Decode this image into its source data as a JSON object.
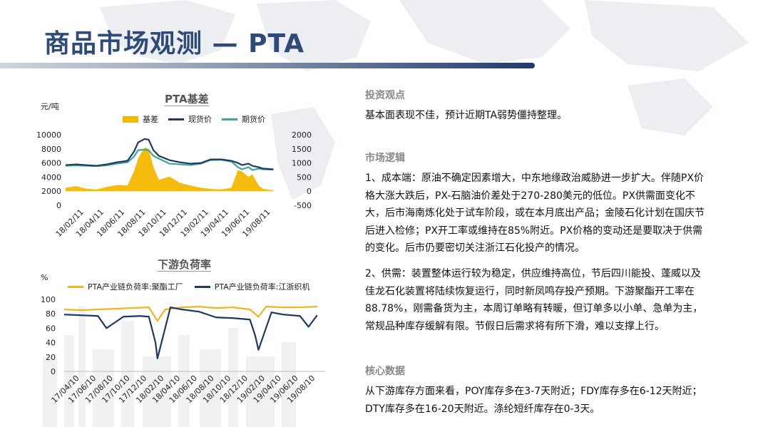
{
  "page": {
    "title": "商品市场观测 — PTA"
  },
  "sections": {
    "view": {
      "title": "投资观点",
      "text": "基本面表现不佳，预计近期TA弱势僵持整理。"
    },
    "logic": {
      "title": "市场逻辑",
      "p1": "1、成本端：原油不确定因素增大，中东地缘政治威胁进一步扩大。伴随PX价格大涨大跌后，PX-石脑油价差处于270-280美元的低位。PX供需面变化不大，后市海南炼化处于试车阶段，或在本月底出产品；金陵石化计划在国庆节后进入检修；PX开工率或维持在85%附近。PX价格的变动还是要取决于供需的变化。后市仍要密切关注浙江石化投产的情况。",
      "p2": "2、供需：装置整体运行较为稳定，供应维持高位，节后四川能投、蓬威以及佳龙石化装置将陆续恢复运行，同时新凤鸣存投产预期。下游聚酯开工率在88.78%，刚需备货为主，本周订单略有转暖，但订单多以小单、急单为主，常规品种库存缓解有限。节假日后需求将有所下滑，难以支撑上行。"
    },
    "core": {
      "title": "核心数据",
      "text": "从下游库存方面来看，POY库存多在3-7天附近；FDY库存多在6-12天附近；DTY库存多在16-20天附近。涤纶短纤库存在0-3天。"
    }
  },
  "colors": {
    "basis": "#f5b800",
    "spot": "#1f3864",
    "futures": "#3aa89a",
    "polyester": "#f2b520",
    "jiangzhe": "#1f3864"
  },
  "chart_data": [
    {
      "type": "bar",
      "title": "PTA基差",
      "ylabel_left": "元/吨",
      "ylim_left": [
        0,
        10000
      ],
      "yticks_left": [
        "10000",
        "8000",
        "6000",
        "4000",
        "2000",
        "0"
      ],
      "ylim_right": [
        -500,
        2000
      ],
      "yticks_right": [
        "2000",
        "1500",
        "1000",
        "500",
        "0",
        "-500"
      ],
      "xticks": [
        "18/02/11",
        "18/04/11",
        "18/06/11",
        "18/08/11",
        "18/10/11",
        "18/12/11",
        "19/02/11",
        "19/04/11",
        "19/06/11",
        "19/08/11"
      ],
      "x_range": [
        "2018-01-01",
        "2019-09-25"
      ],
      "legend_position": "top",
      "series": [
        {
          "name": "基差",
          "axis": "right",
          "kind": "bar",
          "x": [
            "2018-01",
            "2018-02",
            "2018-03",
            "2018-04",
            "2018-05",
            "2018-06",
            "2018-07",
            "2018-07-20",
            "2018-08",
            "2018-08-20",
            "2018-09",
            "2018-09-15",
            "2018-10",
            "2018-11",
            "2018-12",
            "2019-01",
            "2019-02",
            "2019-03",
            "2019-04",
            "2019-05",
            "2019-05-20",
            "2019-06",
            "2019-06-20",
            "2019-07",
            "2019-07-20",
            "2019-08",
            "2019-09"
          ],
          "values": [
            120,
            180,
            90,
            60,
            150,
            220,
            200,
            700,
            1150,
            1550,
            1500,
            850,
            400,
            520,
            300,
            200,
            120,
            80,
            60,
            120,
            750,
            700,
            500,
            600,
            200,
            80,
            30
          ]
        },
        {
          "name": "现货价",
          "axis": "left",
          "kind": "line",
          "x": [
            "2018-01",
            "2018-02",
            "2018-03",
            "2018-04",
            "2018-05",
            "2018-06",
            "2018-07",
            "2018-07-20",
            "2018-08",
            "2018-08-20",
            "2018-09",
            "2018-09-15",
            "2018-10",
            "2018-11",
            "2018-12",
            "2019-01",
            "2019-02",
            "2019-03",
            "2019-04",
            "2019-05",
            "2019-05-20",
            "2019-06",
            "2019-06-20",
            "2019-07",
            "2019-07-20",
            "2019-08",
            "2019-09"
          ],
          "values": [
            5700,
            5800,
            5700,
            5600,
            5800,
            6100,
            6300,
            7600,
            8900,
            9400,
            9300,
            7800,
            7000,
            6400,
            6100,
            5900,
            6000,
            6500,
            6500,
            6300,
            6000,
            5700,
            5900,
            5600,
            5400,
            5200,
            5100
          ]
        },
        {
          "name": "期货价",
          "axis": "left",
          "kind": "line",
          "x": [
            "2018-01",
            "2018-02",
            "2018-03",
            "2018-04",
            "2018-05",
            "2018-06",
            "2018-07",
            "2018-07-20",
            "2018-08",
            "2018-08-20",
            "2018-09",
            "2018-09-15",
            "2018-10",
            "2018-11",
            "2018-12",
            "2019-01",
            "2019-02",
            "2019-03",
            "2019-04",
            "2019-05",
            "2019-05-20",
            "2019-06",
            "2019-06-20",
            "2019-07",
            "2019-07-20",
            "2019-08",
            "2019-09"
          ],
          "values": [
            5600,
            5650,
            5600,
            5550,
            5650,
            5900,
            6100,
            6900,
            7800,
            7900,
            7800,
            7000,
            6600,
            5900,
            5800,
            5700,
            5900,
            6400,
            6450,
            6200,
            5400,
            5100,
            5400,
            5000,
            5200,
            5100,
            5050
          ]
        }
      ]
    },
    {
      "type": "line",
      "title": "下游负荷率",
      "ylabel": "%",
      "ylim": [
        0,
        100
      ],
      "yticks": [
        "100",
        "80",
        "60",
        "40",
        "20",
        "0"
      ],
      "xticks": [
        "17/04/10",
        "17/06/10",
        "17/08/10",
        "17/10/10",
        "17/12/10",
        "18/02/10",
        "18/04/10",
        "18/06/10",
        "18/08/10",
        "18/10/10",
        "18/12/10",
        "19/02/10",
        "19/04/10",
        "19/06/10",
        "19/08/10"
      ],
      "x_range": [
        "2017-03-01",
        "2019-09-30"
      ],
      "legend_position": "top",
      "series": [
        {
          "name": "PTA产业链负荷率:聚酯工厂",
          "x": [
            "2017-03",
            "2017-05",
            "2017-07",
            "2017-09",
            "2017-11",
            "2018-01",
            "2018-02",
            "2018-03",
            "2018-05",
            "2018-07",
            "2018-09",
            "2018-11",
            "2019-01",
            "2019-02",
            "2019-03",
            "2019-05",
            "2019-07",
            "2019-09"
          ],
          "values": [
            86,
            85,
            86,
            87,
            88,
            89,
            70,
            86,
            89,
            90,
            88,
            89,
            86,
            76,
            90,
            89,
            89,
            90
          ]
        },
        {
          "name": "PTA产业链负荷率:江浙织机",
          "x": [
            "2017-03",
            "2017-05",
            "2017-07",
            "2017-08",
            "2017-10",
            "2017-12",
            "2018-01",
            "2018-01-25",
            "2018-02",
            "2018-03-20",
            "2018-05",
            "2018-07",
            "2018-09",
            "2018-11",
            "2019-01",
            "2019-01-20",
            "2019-02",
            "2019-03-20",
            "2019-05",
            "2019-07",
            "2019-08",
            "2019-09"
          ],
          "values": [
            79,
            78,
            77,
            60,
            76,
            77,
            76,
            40,
            18,
            89,
            86,
            83,
            75,
            74,
            72,
            50,
            30,
            82,
            79,
            77,
            62,
            78
          ]
        }
      ]
    }
  ]
}
